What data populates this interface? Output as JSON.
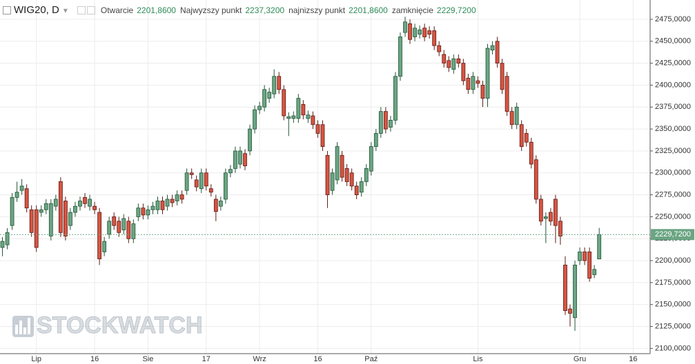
{
  "chart_data": {
    "type": "candlestick",
    "title": "WIG20, D",
    "header": [
      {
        "label": "Otwarcie",
        "value": "2201,8600"
      },
      {
        "label": "Najwyzszy punkt",
        "value": "2237,3200"
      },
      {
        "label": "najnizszy punkt",
        "value": "2201,8600"
      },
      {
        "label": "zamknięcie",
        "value": "2229,7200"
      }
    ],
    "watermark": "STOCKWATCH",
    "up_color": "#6ba583",
    "down_color": "#d75442",
    "grid": true,
    "categories": [
      null,
      null,
      null,
      null,
      null,
      null,
      null,
      "Lip",
      null,
      null,
      null,
      null,
      null,
      null,
      null,
      null,
      null,
      null,
      null,
      "16",
      null,
      null,
      null,
      null,
      null,
      null,
      null,
      null,
      null,
      null,
      "Sie",
      null,
      null,
      null,
      null,
      null,
      null,
      null,
      null,
      null,
      null,
      null,
      "17",
      null,
      null,
      null,
      null,
      null,
      null,
      null,
      null,
      null,
      null,
      "Wrz",
      null,
      null,
      null,
      null,
      null,
      null,
      null,
      null,
      null,
      null,
      null,
      "16",
      null,
      null,
      null,
      null,
      null,
      null,
      null,
      null,
      null,
      null,
      "Paź",
      null,
      null,
      null,
      null,
      null,
      null,
      null,
      null,
      null,
      null,
      null,
      null,
      null,
      null,
      null,
      null,
      null,
      null,
      null,
      null,
      null,
      "Lis",
      null,
      null,
      null,
      null,
      null,
      null,
      null,
      null,
      null,
      null,
      null,
      null,
      null,
      null,
      null,
      null,
      null,
      null,
      null,
      null,
      "Gru",
      null,
      null,
      null,
      null,
      null,
      null,
      null,
      null,
      null,
      null,
      "16",
      null,
      null,
      null
    ],
    "open": [
      2215,
      2218,
      2240,
      2272,
      2280,
      2282,
      2258,
      2258,
      2255,
      2258,
      2228,
      2262,
      2290,
      2268,
      2240,
      2255,
      2262,
      2272,
      2262,
      2262,
      2255,
      2210,
      2230,
      2250,
      2245,
      2235,
      2245,
      2225,
      2250,
      2260,
      2252,
      2258,
      2258,
      2268,
      2262,
      2270,
      2268,
      2275,
      2280,
      2300,
      2292,
      2282,
      2300,
      2282,
      2270,
      2262,
      2270,
      2300,
      2305,
      2310,
      2322,
      2325,
      2350,
      2372,
      2375,
      2385,
      2390,
      2410,
      2395,
      2362,
      2362,
      2362,
      2378,
      2362,
      2365,
      2355,
      2355,
      2320,
      2280,
      2292,
      2320,
      2305,
      2300,
      2285,
      2278,
      2290,
      2302,
      2330,
      2345,
      2370,
      2352,
      2360,
      2410,
      2460,
      2470,
      2455,
      2458,
      2465,
      2462,
      2462,
      2445,
      2435,
      2428,
      2418,
      2430,
      2425,
      2408,
      2395,
      2405,
      2400,
      2385,
      2440,
      2450,
      2425,
      2410,
      2370,
      2355,
      2355,
      2345,
      2335,
      2315,
      2270,
      2248,
      2255,
      2270,
      2245,
      2195,
      2145,
      2135,
      2200,
      2210,
      2210,
      2184,
      2201.86,
      null,
      null,
      null,
      null,
      null,
      null,
      null,
      null,
      null,
      null
    ],
    "high": [
      2227,
      2237,
      2277,
      2290,
      2293,
      2287,
      2263,
      2263,
      2263,
      2270,
      2270,
      2275,
      2295,
      2273,
      2260,
      2267,
      2273,
      2277,
      2275,
      2267,
      2260,
      2227,
      2250,
      2255,
      2250,
      2253,
      2250,
      2247,
      2265,
      2265,
      2263,
      2267,
      2273,
      2273,
      2275,
      2275,
      2280,
      2280,
      2305,
      2305,
      2297,
      2305,
      2305,
      2287,
      2275,
      2273,
      2305,
      2309,
      2330,
      2330,
      2327,
      2355,
      2377,
      2381,
      2400,
      2397,
      2418,
      2415,
      2400,
      2369,
      2370,
      2390,
      2383,
      2371,
      2370,
      2360,
      2360,
      2325,
      2305,
      2335,
      2325,
      2310,
      2305,
      2290,
      2295,
      2310,
      2335,
      2350,
      2375,
      2375,
      2365,
      2415,
      2460,
      2478,
      2475,
      2470,
      2468,
      2470,
      2467,
      2467,
      2450,
      2440,
      2433,
      2435,
      2435,
      2430,
      2413,
      2415,
      2410,
      2405,
      2447,
      2450,
      2455,
      2430,
      2415,
      2375,
      2380,
      2360,
      2350,
      2340,
      2320,
      2275,
      2255,
      2260,
      2275,
      2250,
      2205,
      2150,
      2200,
      2215,
      2215,
      2215,
      2195,
      2237.32,
      null,
      null,
      null,
      null,
      null,
      null,
      null,
      null,
      null,
      null
    ],
    "low": [
      2205,
      2213,
      2235,
      2267,
      2275,
      2255,
      2227,
      2210,
      2250,
      2253,
      2223,
      2257,
      2227,
      2223,
      2235,
      2250,
      2257,
      2260,
      2257,
      2253,
      2195,
      2205,
      2225,
      2235,
      2227,
      2230,
      2220,
      2220,
      2245,
      2247,
      2247,
      2253,
      2253,
      2253,
      2257,
      2261,
      2263,
      2265,
      2275,
      2293,
      2279,
      2277,
      2280,
      2273,
      2245,
      2257,
      2265,
      2295,
      2300,
      2305,
      2303,
      2320,
      2345,
      2367,
      2370,
      2380,
      2385,
      2390,
      2360,
      2342,
      2357,
      2357,
      2361,
      2357,
      2350,
      2340,
      2325,
      2260,
      2275,
      2287,
      2290,
      2285,
      2280,
      2270,
      2273,
      2285,
      2297,
      2325,
      2340,
      2345,
      2347,
      2355,
      2405,
      2455,
      2447,
      2450,
      2453,
      2450,
      2453,
      2440,
      2433,
      2420,
      2415,
      2413,
      2420,
      2400,
      2390,
      2390,
      2397,
      2375,
      2375,
      2435,
      2420,
      2390,
      2365,
      2350,
      2350,
      2325,
      2330,
      2305,
      2265,
      2240,
      2220,
      2240,
      2220,
      2218,
      2138,
      2125,
      2120,
      2195,
      2195,
      2176,
      2180,
      2201.86,
      null,
      null,
      null,
      null,
      null,
      null,
      null,
      null,
      null,
      null
    ],
    "close": [
      2222,
      2232,
      2272,
      2278,
      2285,
      2260,
      2232,
      2215,
      2258,
      2265,
      2265,
      2270,
      2232,
      2228,
      2255,
      2262,
      2268,
      2265,
      2270,
      2258,
      2202,
      2222,
      2245,
      2240,
      2232,
      2248,
      2225,
      2242,
      2260,
      2252,
      2258,
      2262,
      2268,
      2258,
      2270,
      2266,
      2275,
      2270,
      2300,
      2298,
      2284,
      2300,
      2285,
      2278,
      2256,
      2268,
      2300,
      2304,
      2325,
      2325,
      2308,
      2350,
      2372,
      2376,
      2395,
      2392,
      2410,
      2395,
      2365,
      2364,
      2365,
      2385,
      2366,
      2366,
      2355,
      2345,
      2330,
      2275,
      2300,
      2330,
      2295,
      2290,
      2285,
      2275,
      2290,
      2305,
      2330,
      2345,
      2370,
      2350,
      2360,
      2410,
      2455,
      2472,
      2452,
      2465,
      2463,
      2455,
      2458,
      2445,
      2438,
      2425,
      2420,
      2430,
      2425,
      2405,
      2395,
      2410,
      2402,
      2385,
      2442,
      2445,
      2425,
      2395,
      2370,
      2355,
      2375,
      2330,
      2335,
      2310,
      2270,
      2245,
      2250,
      2245,
      2240,
      2228,
      2143,
      2140,
      2195,
      2210,
      2200,
      2180,
      2190,
      2229.72,
      null,
      null,
      null,
      null,
      null,
      null,
      null,
      null,
      null,
      null
    ],
    "ylim": [
      2094,
      2497
    ],
    "yticks": [
      {
        "value": 2100,
        "label": "2100,0000"
      },
      {
        "value": 2125,
        "label": "2125,0000"
      },
      {
        "value": 2150,
        "label": "2150,0000"
      },
      {
        "value": 2175,
        "label": "2175,0000"
      },
      {
        "value": 2200,
        "label": "2200,0000"
      },
      {
        "value": 2225,
        "label": "2225,0000"
      },
      {
        "value": 2250,
        "label": "2250,0000"
      },
      {
        "value": 2275,
        "label": "2275,0000"
      },
      {
        "value": 2300,
        "label": "2300,0000"
      },
      {
        "value": 2325,
        "label": "2325,0000"
      },
      {
        "value": 2350,
        "label": "2350,0000"
      },
      {
        "value": 2375,
        "label": "2375,0000"
      },
      {
        "value": 2400,
        "label": "2400,0000"
      },
      {
        "value": 2425,
        "label": "2425,0000"
      },
      {
        "value": 2450,
        "label": "2450,0000"
      },
      {
        "value": 2475,
        "label": "2475,0000"
      }
    ]
  }
}
